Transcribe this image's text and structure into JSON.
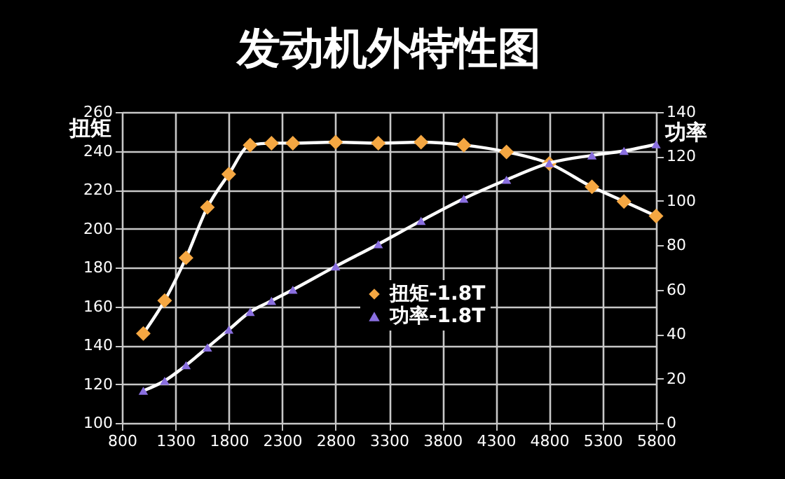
{
  "chart_data": {
    "type": "line",
    "title": "发动机外特性图",
    "ylabel": "扭矩",
    "y2label": "功率",
    "x": [
      1000,
      1200,
      1400,
      1600,
      1800,
      2000,
      2200,
      2400,
      2800,
      3200,
      3600,
      4000,
      4400,
      4800,
      5200,
      5500,
      5800
    ],
    "series": [
      {
        "name": "扭矩-1.8T",
        "color": "#f5a742",
        "marker": "diamond",
        "values": [
          146,
          163,
          185,
          211,
          228,
          243,
          244,
          244,
          244.5,
          244,
          244.5,
          243,
          239.5,
          233.5,
          221.5,
          214,
          206.5
        ]
      },
      {
        "name": "功率-1.8T",
        "color": "#8a6fe0",
        "marker": "triangle",
        "axis": "y2",
        "values": [
          14.5,
          19,
          26,
          34,
          42,
          50,
          55,
          60,
          70.5,
          80.5,
          91,
          101,
          109.5,
          117,
          120.5,
          122.5,
          125.5
        ]
      }
    ],
    "xlim": [
      800,
      5800
    ],
    "xticks": [
      800,
      1300,
      1800,
      2300,
      2800,
      3300,
      3800,
      4300,
      4800,
      5300,
      5800
    ],
    "ylim": [
      100,
      260
    ],
    "yticks": [
      100,
      120,
      140,
      160,
      180,
      200,
      220,
      240,
      260
    ],
    "y2lim": [
      0,
      140
    ],
    "y2ticks": [
      0,
      20,
      40,
      60,
      80,
      100,
      120,
      140
    ],
    "grid": true,
    "legend": "right",
    "line_style": "solid"
  }
}
